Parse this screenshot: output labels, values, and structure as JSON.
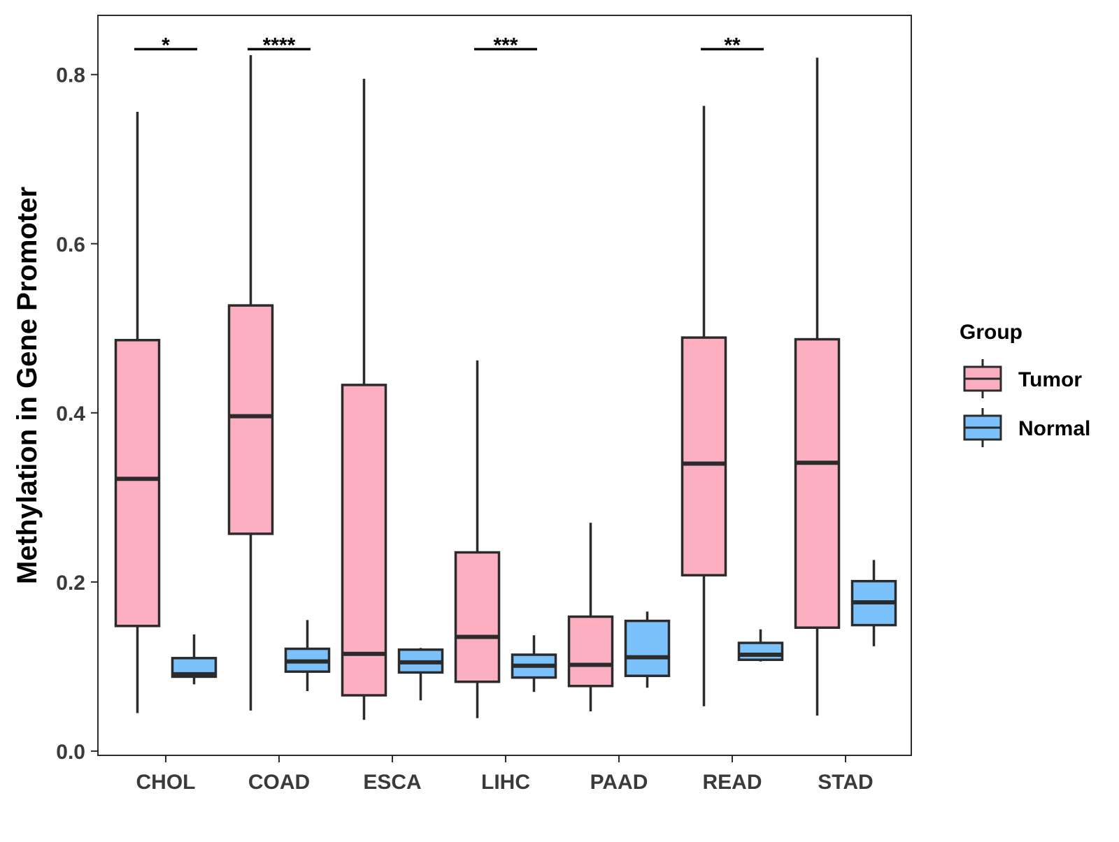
{
  "chart_data": {
    "type": "boxplot",
    "title": "",
    "xlabel": "",
    "ylabel": "Methylation in Gene Promoter",
    "ylim": [
      -0.005,
      0.87
    ],
    "yticks": [
      0.0,
      0.2,
      0.4,
      0.6,
      0.8
    ],
    "ytick_labels": [
      "0.0",
      "0.2",
      "0.4",
      "0.6",
      "0.8"
    ],
    "grid": false,
    "legend_position": "right",
    "legend": {
      "title": "Group",
      "entries": [
        {
          "name": "Tumor",
          "color": "#FBAFC1"
        },
        {
          "name": "Normal",
          "color": "#7BC1FB"
        }
      ]
    },
    "categories": [
      "CHOL",
      "COAD",
      "ESCA",
      "LIHC",
      "PAAD",
      "READ",
      "STAD"
    ],
    "series": [
      {
        "name": "Tumor",
        "color": "#FBAFC1",
        "boxes": [
          {
            "min": 0.045,
            "q1": 0.148,
            "median": 0.322,
            "q3": 0.486,
            "max": 0.756
          },
          {
            "min": 0.048,
            "q1": 0.257,
            "median": 0.396,
            "q3": 0.527,
            "max": 0.823
          },
          {
            "min": 0.037,
            "q1": 0.066,
            "median": 0.115,
            "q3": 0.433,
            "max": 0.795
          },
          {
            "min": 0.039,
            "q1": 0.082,
            "median": 0.135,
            "q3": 0.235,
            "max": 0.462
          },
          {
            "min": 0.047,
            "q1": 0.077,
            "median": 0.102,
            "q3": 0.159,
            "max": 0.27
          },
          {
            "min": 0.053,
            "q1": 0.208,
            "median": 0.34,
            "q3": 0.489,
            "max": 0.763
          },
          {
            "min": 0.042,
            "q1": 0.146,
            "median": 0.341,
            "q3": 0.487,
            "max": 0.82
          }
        ]
      },
      {
        "name": "Normal",
        "color": "#7BC1FB",
        "boxes": [
          {
            "min": 0.079,
            "q1": 0.088,
            "median": 0.091,
            "q3": 0.11,
            "max": 0.138
          },
          {
            "min": 0.071,
            "q1": 0.094,
            "median": 0.106,
            "q3": 0.121,
            "max": 0.155
          },
          {
            "min": 0.06,
            "q1": 0.093,
            "median": 0.105,
            "q3": 0.12,
            "max": 0.122
          },
          {
            "min": 0.07,
            "q1": 0.087,
            "median": 0.101,
            "q3": 0.114,
            "max": 0.137
          },
          {
            "min": 0.075,
            "q1": 0.089,
            "median": 0.111,
            "q3": 0.154,
            "max": 0.165
          },
          {
            "min": 0.106,
            "q1": 0.108,
            "median": 0.114,
            "q3": 0.128,
            "max": 0.144
          },
          {
            "min": 0.124,
            "q1": 0.149,
            "median": 0.176,
            "q3": 0.201,
            "max": 0.226
          }
        ]
      }
    ],
    "significance": [
      {
        "category": "CHOL",
        "label": "*",
        "y": 0.83
      },
      {
        "category": "COAD",
        "label": "****",
        "y": 0.83
      },
      {
        "category": "LIHC",
        "label": "***",
        "y": 0.83
      },
      {
        "category": "READ",
        "label": "**",
        "y": 0.83
      }
    ]
  },
  "colors": {
    "tumor_fill": "#FBAFC1",
    "normal_fill": "#7BC1FB",
    "outline": "#2b2b2b",
    "axis": "#2b2b2b",
    "panel_border": "#2b2b2b"
  }
}
